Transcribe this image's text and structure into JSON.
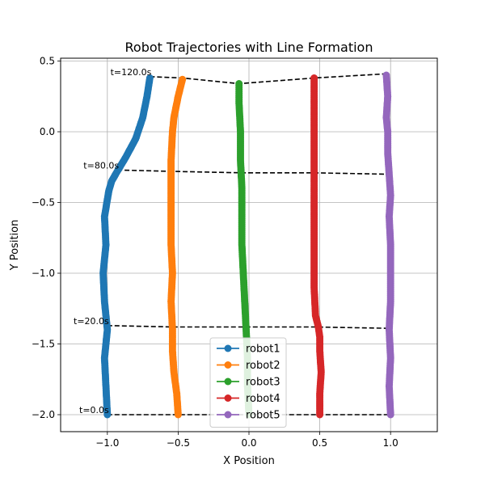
{
  "chart_data": {
    "type": "line",
    "title": "Robot Trajectories with Line Formation",
    "xlabel": "X Position",
    "ylabel": "Y Position",
    "xlim": [
      -1.33,
      1.33
    ],
    "ylim": [
      -2.12,
      0.52
    ],
    "xticks": [
      -1.0,
      -0.5,
      0.0,
      0.5,
      1.0
    ],
    "xtick_labels": [
      "−1.0",
      "−0.5",
      "0.0",
      "0.5",
      "1.0"
    ],
    "yticks": [
      0.5,
      0.0,
      -0.5,
      -1.0,
      -1.5,
      -2.0
    ],
    "ytick_labels": [
      "0.5",
      "0.0",
      "−0.5",
      "−1.0",
      "−1.5",
      "−2.0"
    ],
    "grid": true,
    "legend_position": "lower center",
    "series": [
      {
        "name": "robot1",
        "color": "#1f77b4",
        "x": [
          -1.0,
          -1.01,
          -1.02,
          -1.0,
          -1.02,
          -1.03,
          -1.01,
          -1.02,
          -1.0,
          -0.99,
          -0.97,
          -0.93,
          -0.87,
          -0.8,
          -0.75,
          -0.72,
          -0.7
        ],
        "y": [
          -2.0,
          -1.8,
          -1.6,
          -1.4,
          -1.2,
          -1.0,
          -0.8,
          -0.6,
          -0.48,
          -0.42,
          -0.35,
          -0.28,
          -0.18,
          -0.05,
          0.1,
          0.25,
          0.38
        ]
      },
      {
        "name": "robot2",
        "color": "#ff7f0e",
        "x": [
          -0.5,
          -0.51,
          -0.53,
          -0.54,
          -0.54,
          -0.55,
          -0.54,
          -0.55,
          -0.55,
          -0.55,
          -0.55,
          -0.54,
          -0.53,
          -0.5,
          -0.47
        ],
        "y": [
          -2.0,
          -1.85,
          -1.7,
          -1.55,
          -1.4,
          -1.2,
          -1.0,
          -0.8,
          -0.6,
          -0.4,
          -0.2,
          0.0,
          0.1,
          0.25,
          0.37
        ]
      },
      {
        "name": "robot3",
        "color": "#2ca02c",
        "x": [
          0.0,
          -0.01,
          -0.01,
          -0.02,
          -0.03,
          -0.04,
          -0.05,
          -0.05,
          -0.05,
          -0.06,
          -0.06,
          -0.07,
          -0.07
        ],
        "y": [
          -2.0,
          -1.8,
          -1.6,
          -1.4,
          -1.2,
          -1.0,
          -0.8,
          -0.6,
          -0.4,
          -0.2,
          0.0,
          0.2,
          0.34
        ]
      },
      {
        "name": "robot4",
        "color": "#d62728",
        "x": [
          0.5,
          0.5,
          0.51,
          0.5,
          0.5,
          0.49,
          0.47,
          0.46,
          0.46,
          0.46,
          0.46,
          0.46,
          0.46,
          0.46
        ],
        "y": [
          -2.0,
          -1.85,
          -1.7,
          -1.55,
          -1.45,
          -1.38,
          -1.3,
          -1.1,
          -0.9,
          -0.6,
          -0.3,
          0.0,
          0.2,
          0.38
        ]
      },
      {
        "name": "robot5",
        "color": "#9467bd",
        "x": [
          1.0,
          0.99,
          1.0,
          0.99,
          1.0,
          1.0,
          1.0,
          0.99,
          1.0,
          0.99,
          0.98,
          0.98,
          0.97,
          0.98,
          0.97
        ],
        "y": [
          -2.0,
          -1.8,
          -1.6,
          -1.4,
          -1.2,
          -1.0,
          -0.8,
          -0.6,
          -0.45,
          -0.3,
          -0.15,
          0.0,
          0.1,
          0.25,
          0.4
        ]
      }
    ],
    "formation_lines": [
      {
        "label": "t=0.0s",
        "x": [
          -1.0,
          -0.5,
          0.0,
          0.5,
          1.0
        ],
        "y": [
          -2.0,
          -2.0,
          -2.0,
          -2.0,
          -2.0
        ]
      },
      {
        "label": "t=20.0s",
        "x": [
          -1.0,
          -0.53,
          -0.04,
          0.46,
          1.0
        ],
        "y": [
          -1.37,
          -1.38,
          -1.38,
          -1.38,
          -1.39
        ]
      },
      {
        "label": "t=80.0s",
        "x": [
          -0.93,
          -0.54,
          -0.05,
          0.46,
          0.98
        ],
        "y": [
          -0.27,
          -0.28,
          -0.29,
          -0.29,
          -0.3
        ]
      },
      {
        "label": "t=120.0s",
        "x": [
          -0.7,
          -0.47,
          -0.07,
          0.46,
          0.97
        ],
        "y": [
          0.39,
          0.38,
          0.34,
          0.38,
          0.41
        ]
      }
    ]
  }
}
